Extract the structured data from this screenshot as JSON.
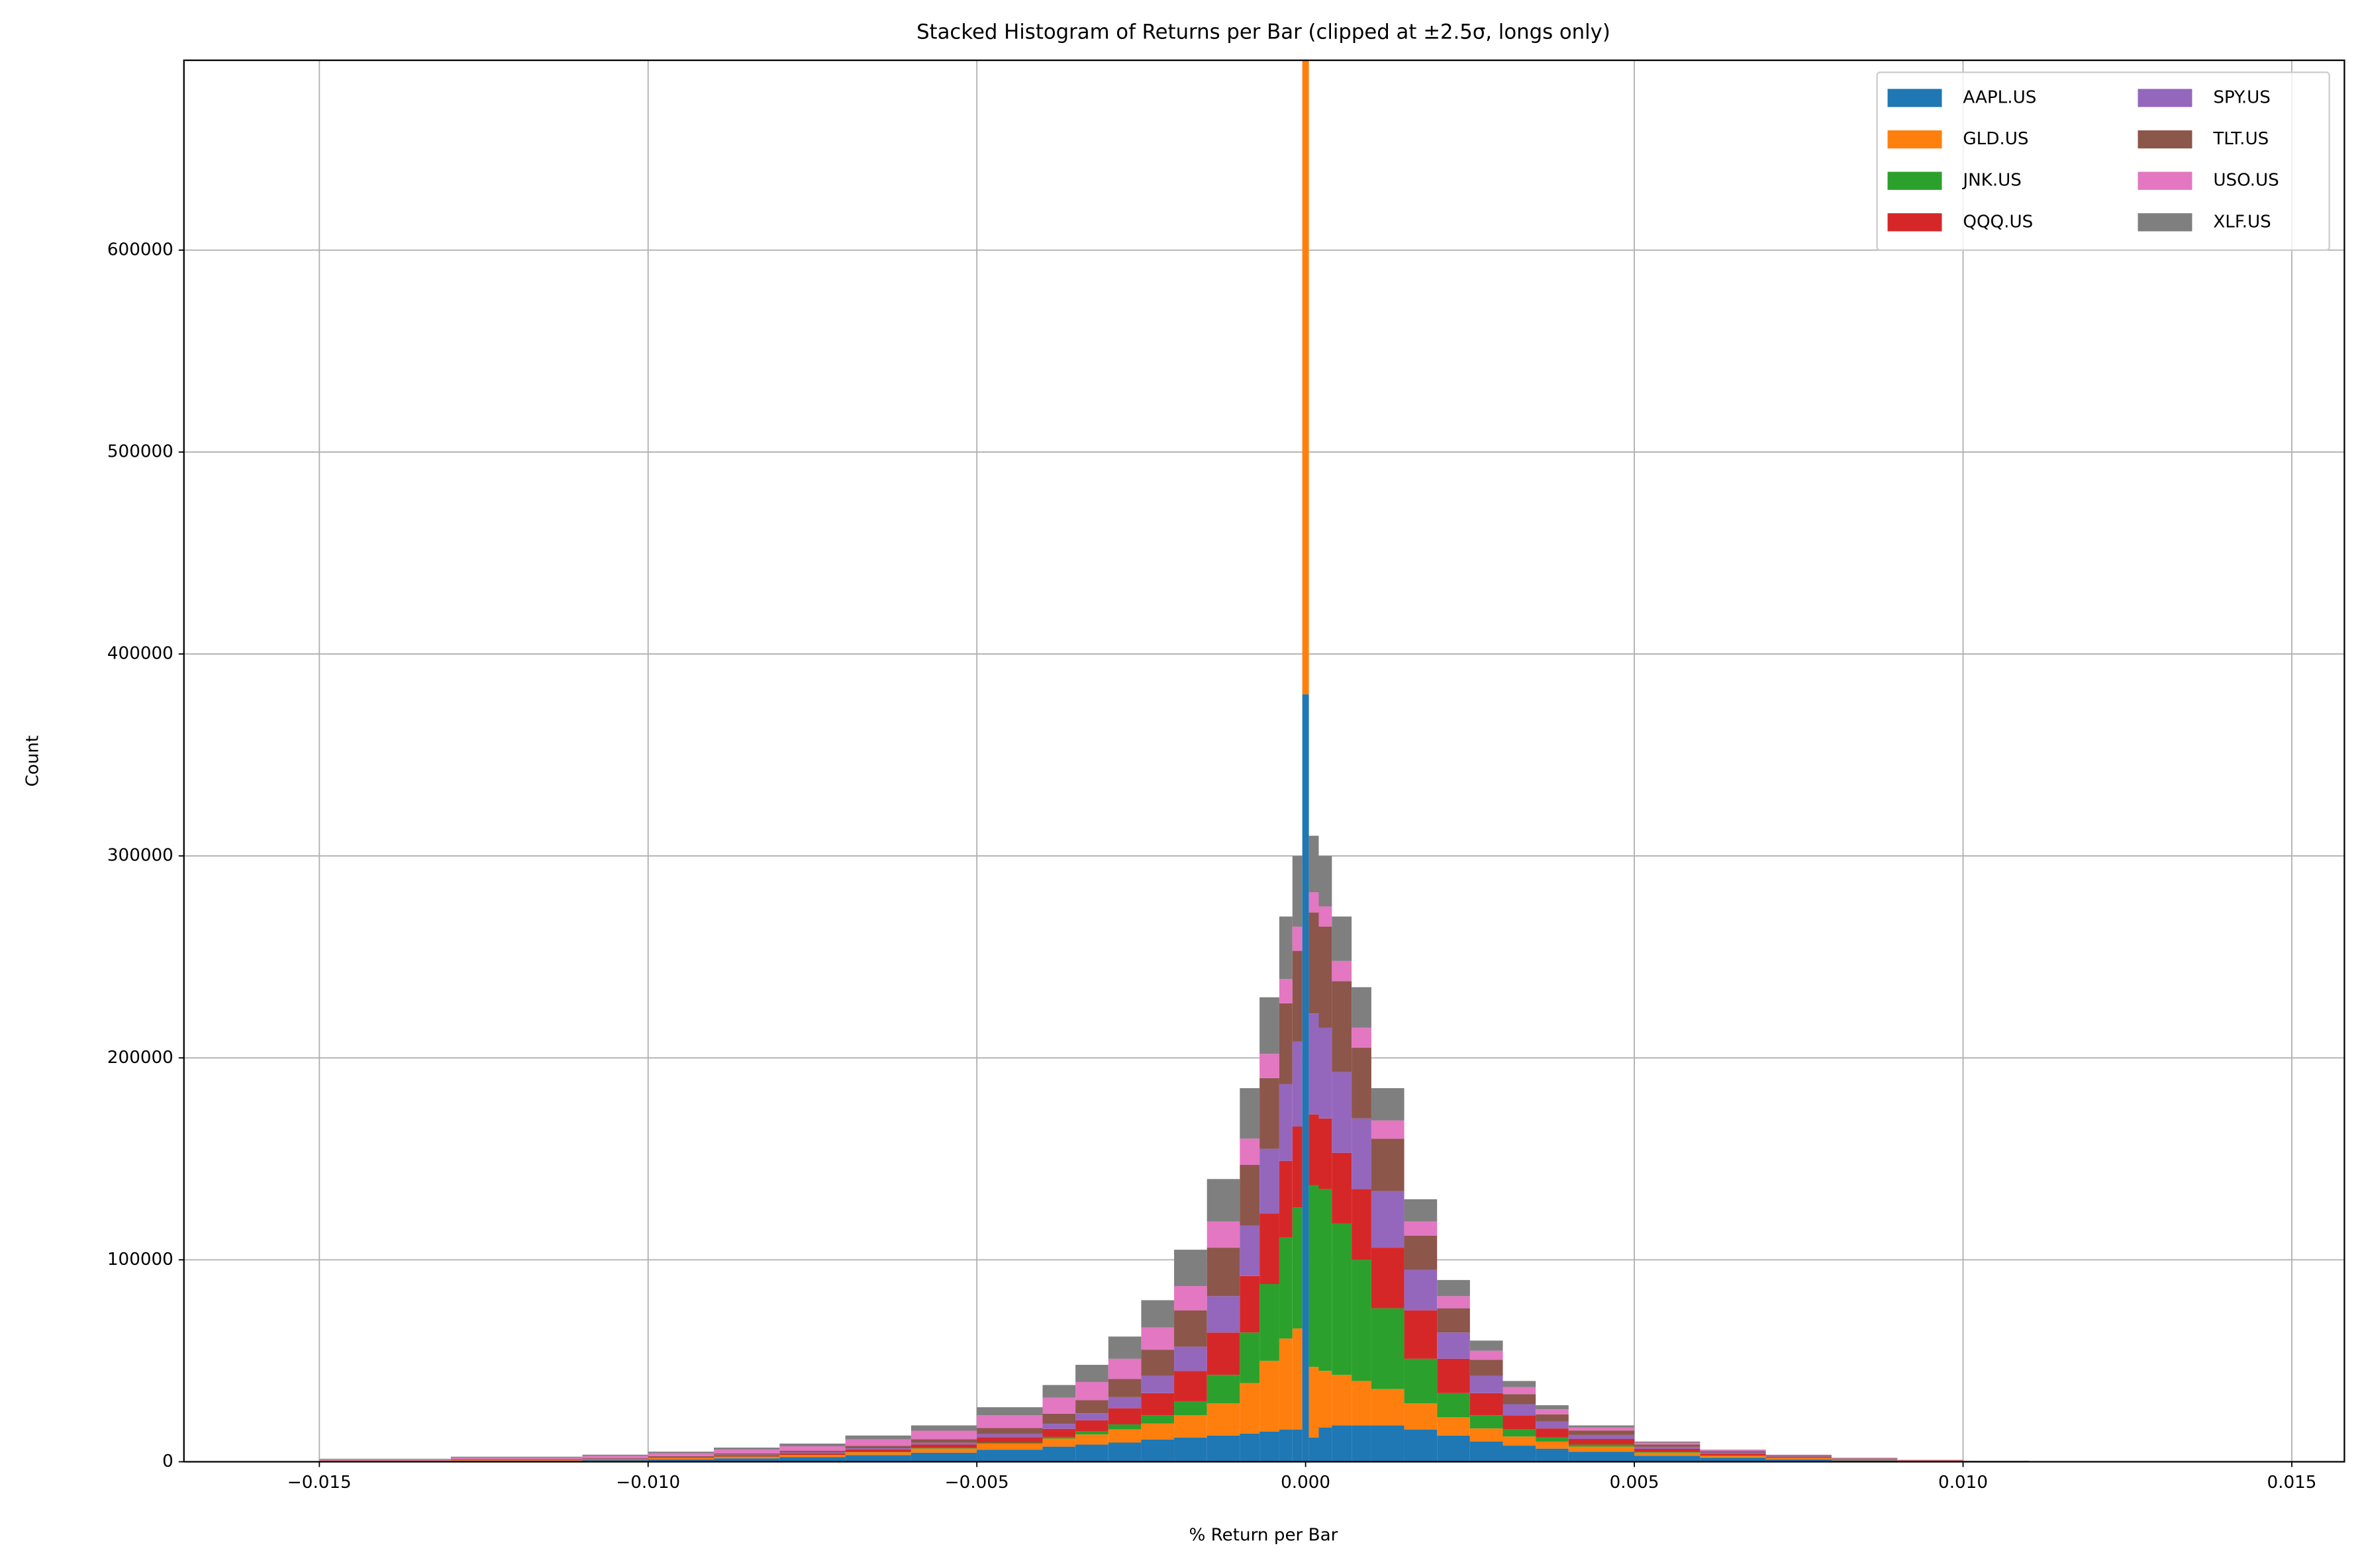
{
  "chart_data": {
    "type": "stacked-histogram",
    "title": "Stacked Histogram of Returns per Bar (clipped at ±2.5σ, longs only)",
    "x_label": "% Return per Bar",
    "y_label": "Count",
    "bins": [
      -0.015,
      -0.013,
      -0.011,
      -0.01,
      -0.009,
      -0.008,
      -0.007,
      -0.006,
      -0.005,
      -0.004,
      -0.0035,
      -0.003,
      -0.0025,
      -0.002,
      -0.0015,
      -0.001,
      -0.0007,
      -0.0004,
      -0.0002,
      -5e-05,
      5e-05,
      0.0002,
      0.0004,
      0.0007,
      0.001,
      0.0015,
      0.002,
      0.0025,
      0.003,
      0.0035,
      0.004,
      0.005,
      0.006,
      0.007,
      0.008,
      0.009,
      0.01,
      0.011,
      0.013,
      0.015
    ],
    "series": [
      {
        "name": "AAPL.US",
        "color": "#1f77b4",
        "values": [
          300,
          500,
          800,
          1200,
          1700,
          2300,
          3300,
          4500,
          6000,
          7500,
          8500,
          9500,
          11000,
          12000,
          13000,
          14000,
          15000,
          16000,
          16000,
          380000,
          12000,
          17000,
          18000,
          18000,
          18000,
          16000,
          13000,
          10000,
          8000,
          6500,
          5000,
          3000,
          2000,
          1200,
          700,
          350,
          180,
          70,
          20
        ]
      },
      {
        "name": "GLD.US",
        "color": "#ff7f0e",
        "values": [
          200,
          300,
          400,
          600,
          800,
          1000,
          1400,
          2000,
          3000,
          4000,
          5000,
          6500,
          8000,
          11000,
          16000,
          25000,
          35000,
          45000,
          50000,
          314000,
          35000,
          28000,
          25000,
          22000,
          18000,
          13000,
          9000,
          6500,
          4500,
          3500,
          2500,
          1500,
          900,
          600,
          300,
          150,
          80,
          30,
          10
        ]
      },
      {
        "name": "JNK.US",
        "color": "#2ca02c",
        "values": [
          0,
          0,
          0,
          50,
          100,
          100,
          200,
          300,
          500,
          800,
          1500,
          2500,
          4000,
          7000,
          14000,
          25000,
          38000,
          50000,
          60000,
          200,
          90000,
          90000,
          75000,
          60000,
          40000,
          22000,
          12000,
          6500,
          3500,
          2000,
          1000,
          400,
          200,
          100,
          50,
          20,
          10,
          0,
          0
        ]
      },
      {
        "name": "QQQ.US",
        "color": "#d62728",
        "values": [
          100,
          200,
          300,
          400,
          600,
          800,
          1200,
          1700,
          2700,
          4000,
          5500,
          8000,
          11000,
          15000,
          21000,
          28000,
          35000,
          38000,
          40000,
          100,
          35000,
          35000,
          35000,
          35000,
          30000,
          24000,
          17000,
          11000,
          7000,
          4500,
          2800,
          1500,
          900,
          500,
          300,
          150,
          70,
          30,
          5
        ]
      },
      {
        "name": "SPY.US",
        "color": "#9467bd",
        "values": [
          50,
          100,
          100,
          200,
          300,
          400,
          600,
          900,
          1500,
          2500,
          3500,
          5500,
          8500,
          12000,
          18000,
          25000,
          32000,
          38000,
          42000,
          100,
          50000,
          45000,
          40000,
          35000,
          28000,
          20000,
          13000,
          8500,
          5500,
          3500,
          2000,
          1000,
          600,
          300,
          200,
          100,
          50,
          20,
          5
        ]
      },
      {
        "name": "TLT.US",
        "color": "#8c564b",
        "values": [
          100,
          200,
          300,
          400,
          600,
          800,
          1200,
          1800,
          3000,
          5000,
          6500,
          9000,
          13000,
          18000,
          24000,
          30000,
          35000,
          40000,
          45000,
          100,
          50000,
          50000,
          45000,
          35000,
          26000,
          17000,
          12000,
          8000,
          5000,
          3500,
          2200,
          1200,
          700,
          400,
          200,
          100,
          50,
          20,
          5
        ]
      },
      {
        "name": "USO.US",
        "color": "#e377c2",
        "values": [
          500,
          800,
          1000,
          1400,
          1900,
          2300,
          3200,
          4200,
          6300,
          8000,
          9000,
          10000,
          11000,
          12000,
          13000,
          13000,
          12000,
          12000,
          12000,
          100,
          10000,
          10000,
          10000,
          10000,
          9000,
          7000,
          6000,
          4500,
          3500,
          2500,
          1500,
          900,
          500,
          300,
          200,
          100,
          50,
          20,
          5
        ]
      },
      {
        "name": "XLF.US",
        "color": "#7f7f7f",
        "values": [
          250,
          400,
          600,
          750,
          1000,
          1300,
          1900,
          2600,
          4000,
          6200,
          8500,
          11000,
          13500,
          18000,
          21000,
          25000,
          28000,
          31000,
          35000,
          100,
          28000,
          25000,
          22000,
          20000,
          16000,
          11000,
          8000,
          5000,
          3000,
          2000,
          1000,
          500,
          200,
          100,
          50,
          30,
          10,
          10,
          0
        ]
      }
    ],
    "xlim": [
      -0.01706,
      0.0158
    ],
    "ylim": [
      0,
      694000
    ],
    "xticks": [
      {
        "value": -0.015,
        "label": "−0.015"
      },
      {
        "value": -0.01,
        "label": "−0.010"
      },
      {
        "value": -0.005,
        "label": "−0.005"
      },
      {
        "value": 0,
        "label": "0.000"
      },
      0.005,
      {
        "value": 0.01,
        "label": "0.010"
      },
      0.015
    ],
    "yticks": [
      0,
      100000,
      200000,
      300000,
      400000,
      500000,
      600000
    ],
    "grid": true,
    "legend": "upper-right",
    "legend_columns": 2
  }
}
